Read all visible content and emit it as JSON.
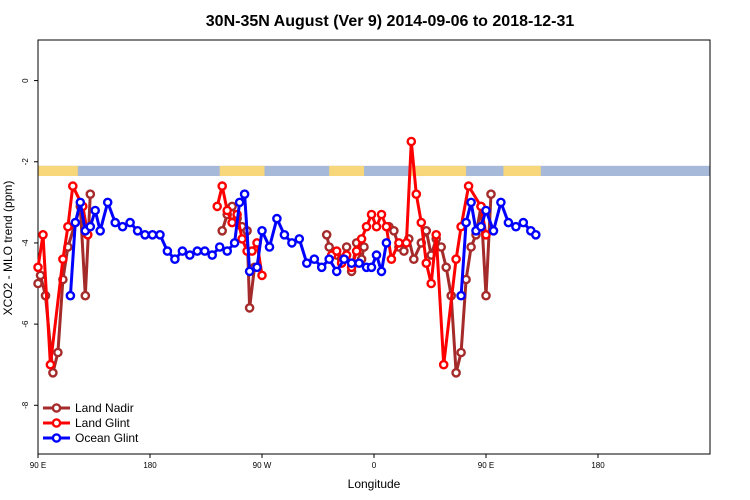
{
  "chart_data": {
    "type": "line",
    "title": "30N-35N August (Ver 9)   2014-09-06 to 2018-12-31",
    "xlabel": "Longitude",
    "ylabel": "XCO2 - MLO trend (ppm)",
    "xlim": [
      -90,
      180
    ],
    "ylim": [
      -9.2,
      1.0
    ],
    "x_ticks": [
      {
        "value": -90,
        "label": "90 E"
      },
      {
        "value": -45,
        "label": "180"
      },
      {
        "value": 0,
        "label": "90 W"
      },
      {
        "value": 45,
        "label": "0"
      },
      {
        "value": 90,
        "label": "90 E"
      },
      {
        "value": 135,
        "label": "180"
      }
    ],
    "y_ticks": [
      0,
      -2,
      -4,
      -6,
      -8
    ],
    "grid": false,
    "legend_position": "bottom-left",
    "surface_band": {
      "y_top": -2.1,
      "y_bottom": -2.35,
      "ocean_color": "#a6b9d9",
      "land_color": "#f7d77a",
      "land_segments": [
        [
          -90,
          -74
        ],
        [
          -17,
          1
        ],
        [
          27,
          41
        ],
        [
          59,
          82
        ],
        [
          97,
          112
        ]
      ]
    },
    "series": [
      {
        "name": "Land Nadir",
        "color": "#a52a2a",
        "points": [
          [
            -90,
            -5.0
          ],
          [
            -89,
            -4.8
          ],
          [
            -87,
            -5.3
          ],
          [
            -84,
            -7.2
          ],
          [
            -82,
            -6.7
          ],
          [
            -80,
            -4.9
          ],
          [
            -78,
            -4.1
          ],
          [
            -73,
            -3.1
          ],
          [
            -71,
            -5.3
          ],
          [
            -69,
            -2.8
          ],
          [
            -16,
            -3.7
          ],
          [
            -14,
            -3.3
          ],
          [
            -12,
            -3.1
          ],
          [
            -10,
            -3.4
          ],
          [
            -8,
            -3.6
          ],
          [
            -6,
            -3.7
          ],
          [
            -5,
            -5.6
          ],
          [
            -3,
            -4.6
          ],
          [
            26,
            -3.8
          ],
          [
            27,
            -4.1
          ],
          [
            30,
            -4.3
          ],
          [
            32,
            -4.4
          ],
          [
            34,
            -4.1
          ],
          [
            36,
            -4.7
          ],
          [
            38,
            -4.0
          ],
          [
            40,
            -4.4
          ],
          [
            41,
            -4.1
          ],
          [
            51,
            -3.6
          ],
          [
            53,
            -3.7
          ],
          [
            55,
            -4.1
          ],
          [
            57,
            -4.2
          ],
          [
            59,
            -3.9
          ],
          [
            61,
            -4.4
          ],
          [
            64,
            -4.0
          ],
          [
            66,
            -3.7
          ],
          [
            68,
            -4.3
          ],
          [
            70,
            -3.9
          ],
          [
            72,
            -4.1
          ],
          [
            74,
            -4.6
          ],
          [
            76,
            -5.3
          ],
          [
            78,
            -7.2
          ],
          [
            80,
            -6.7
          ],
          [
            82,
            -4.9
          ],
          [
            84,
            -4.1
          ],
          [
            86,
            -3.8
          ],
          [
            88,
            -3.1
          ],
          [
            90,
            -5.3
          ],
          [
            92,
            -2.8
          ]
        ]
      },
      {
        "name": "Land Glint",
        "color": "#ff0000",
        "points": [
          [
            -90,
            -4.6
          ],
          [
            -88,
            -3.8
          ],
          [
            -85,
            -7.0
          ],
          [
            -80,
            -4.4
          ],
          [
            -78,
            -3.6
          ],
          [
            -76,
            -2.6
          ],
          [
            -72,
            -3.1
          ],
          [
            -70,
            -3.8
          ],
          [
            -18,
            -3.1
          ],
          [
            -16,
            -2.6
          ],
          [
            -14,
            -3.2
          ],
          [
            -12,
            -3.5
          ],
          [
            -10,
            -3.3
          ],
          [
            -8,
            -3.9
          ],
          [
            -6,
            -4.2
          ],
          [
            -4,
            -4.2
          ],
          [
            -2,
            -4.0
          ],
          [
            0,
            -4.8
          ],
          [
            28,
            -4.3
          ],
          [
            30,
            -4.2
          ],
          [
            32,
            -4.5
          ],
          [
            34,
            -4.3
          ],
          [
            36,
            -4.6
          ],
          [
            38,
            -4.2
          ],
          [
            40,
            -3.9
          ],
          [
            42,
            -3.6
          ],
          [
            44,
            -3.3
          ],
          [
            46,
            -3.6
          ],
          [
            48,
            -3.3
          ],
          [
            50,
            -3.6
          ],
          [
            52,
            -4.4
          ],
          [
            55,
            -4.0
          ],
          [
            58,
            -4.0
          ],
          [
            60,
            -1.5
          ],
          [
            62,
            -2.8
          ],
          [
            64,
            -3.5
          ],
          [
            66,
            -4.5
          ],
          [
            68,
            -5.0
          ],
          [
            70,
            -3.8
          ],
          [
            73,
            -7.0
          ],
          [
            78,
            -4.4
          ],
          [
            80,
            -3.6
          ],
          [
            83,
            -2.6
          ],
          [
            88,
            -3.1
          ],
          [
            90,
            -3.8
          ]
        ]
      },
      {
        "name": "Ocean Glint",
        "color": "#0000ff",
        "points": [
          [
            -77,
            -5.3
          ],
          [
            -75,
            -3.5
          ],
          [
            -73,
            -3.0
          ],
          [
            -71,
            -3.7
          ],
          [
            -69,
            -3.6
          ],
          [
            -67,
            -3.2
          ],
          [
            -65,
            -3.7
          ],
          [
            -62,
            -3.0
          ],
          [
            -59,
            -3.5
          ],
          [
            -56,
            -3.6
          ],
          [
            -53,
            -3.5
          ],
          [
            -50,
            -3.7
          ],
          [
            -47,
            -3.8
          ],
          [
            -44,
            -3.8
          ],
          [
            -41,
            -3.8
          ],
          [
            -38,
            -4.2
          ],
          [
            -35,
            -4.4
          ],
          [
            -32,
            -4.2
          ],
          [
            -29,
            -4.3
          ],
          [
            -26,
            -4.2
          ],
          [
            -23,
            -4.2
          ],
          [
            -20,
            -4.3
          ],
          [
            -17,
            -4.1
          ],
          [
            -14,
            -4.2
          ],
          [
            -11,
            -4.0
          ],
          [
            -9,
            -3.0
          ],
          [
            -7,
            -2.8
          ],
          [
            -5,
            -4.7
          ],
          [
            -2,
            -4.6
          ],
          [
            0,
            -3.7
          ],
          [
            3,
            -4.1
          ],
          [
            6,
            -3.4
          ],
          [
            9,
            -3.8
          ],
          [
            12,
            -4.0
          ],
          [
            15,
            -3.9
          ],
          [
            18,
            -4.5
          ],
          [
            21,
            -4.4
          ],
          [
            24,
            -4.6
          ],
          [
            27,
            -4.4
          ],
          [
            30,
            -4.7
          ],
          [
            33,
            -4.4
          ],
          [
            36,
            -4.5
          ],
          [
            39,
            -4.5
          ],
          [
            42,
            -4.6
          ],
          [
            44,
            -4.6
          ],
          [
            46,
            -4.3
          ],
          [
            48,
            -4.7
          ],
          [
            50,
            -4.0
          ],
          [
            80,
            -5.3
          ],
          [
            82,
            -3.5
          ],
          [
            84,
            -3.0
          ],
          [
            86,
            -3.7
          ],
          [
            88,
            -3.6
          ],
          [
            90,
            -3.2
          ],
          [
            93,
            -3.7
          ],
          [
            96,
            -3.0
          ],
          [
            99,
            -3.5
          ],
          [
            102,
            -3.6
          ],
          [
            105,
            -3.5
          ],
          [
            108,
            -3.7
          ],
          [
            110,
            -3.8
          ]
        ]
      }
    ]
  }
}
